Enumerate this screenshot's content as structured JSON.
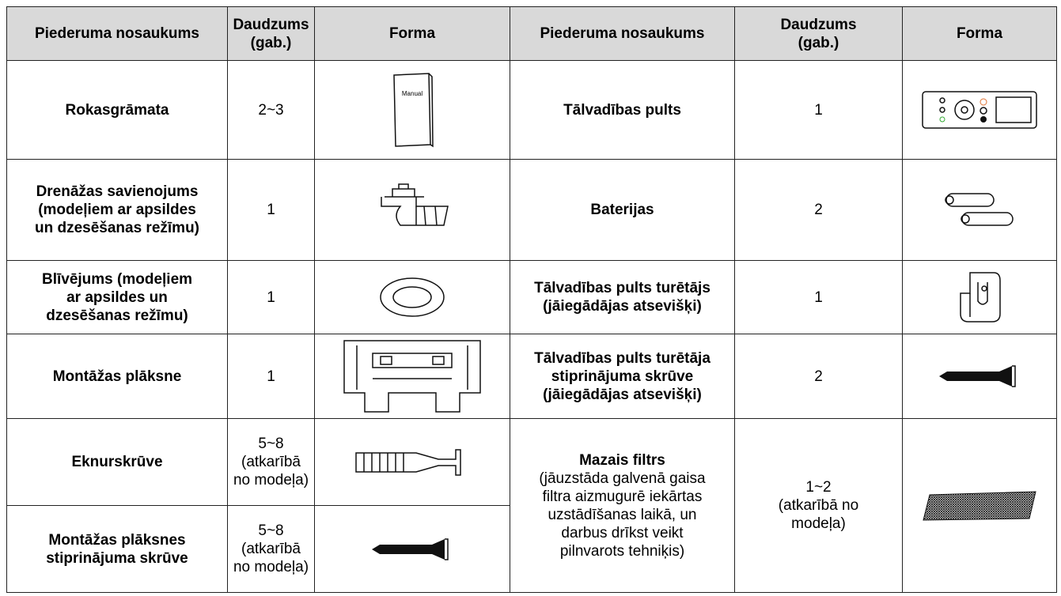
{
  "table": {
    "header": [
      [
        "Piederuma nosaukums"
      ],
      [
        "Daudzums",
        "(gab.)"
      ],
      [
        "Forma"
      ],
      [
        "Piederuma nosaukums"
      ],
      [
        "Daudzums",
        "(gab.)"
      ],
      [
        "Forma"
      ]
    ],
    "manual_icon_label": "Manual",
    "left": [
      {
        "name": [
          "Rokasgrāmata"
        ],
        "qty": [
          "2~3"
        ]
      },
      {
        "name": [
          "Drenāžas savienojums",
          "(modeļiem ar apsildes",
          "un dzesēšanas režīmu)"
        ],
        "qty": [
          "1"
        ]
      },
      {
        "name": [
          "Blīvējums (modeļiem",
          "ar apsildes un",
          "dzesēšanas režīmu)"
        ],
        "qty": [
          "1"
        ]
      },
      {
        "name": [
          "Montāžas plāksne"
        ],
        "qty": [
          "1"
        ]
      },
      {
        "name": [
          "Eknurskrūve"
        ],
        "qty": [
          "5~8",
          "(atkarībā",
          "no modeļa)"
        ]
      },
      {
        "name": [
          "Montāžas plāksnes",
          "stiprinājuma skrūve"
        ],
        "qty": [
          "5~8",
          "(atkarībā",
          "no modeļa)"
        ]
      }
    ],
    "right": [
      {
        "name": [
          "Tālvadības pults"
        ],
        "qty": [
          "1"
        ]
      },
      {
        "name": [
          "Baterijas"
        ],
        "qty": [
          "2"
        ]
      },
      {
        "name": [
          "Tālvadības pults turētājs",
          "(jāiegādājas atsevišķi)"
        ],
        "qty": [
          "1"
        ]
      },
      {
        "name": [
          "Tālvadības pults turētāja",
          "stiprinājuma skrūve",
          "(jāiegādājas atsevišķi)"
        ],
        "qty": [
          "2"
        ]
      },
      {
        "title": "Mazais filtrs",
        "name": [
          "(jāuzstāda galvenā gaisa",
          "filtra aizmugurē iekārtas",
          "uzstādīšanas laikā, un",
          "darbus drīkst veikt",
          "pilnvarots tehniķis)"
        ],
        "qty": [
          "1~2",
          "(atkarībā no",
          "modeļa)"
        ]
      }
    ]
  }
}
